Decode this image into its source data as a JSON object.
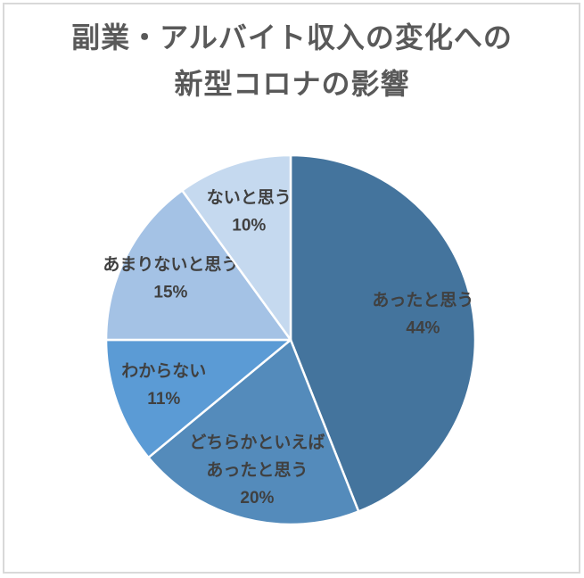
{
  "chart_data": {
    "type": "pie",
    "title": "副業・アルバイト収入の変化への新型コロナの影響",
    "title_lines": [
      "副業・アルバイト収入の変化への",
      "新型コロナの影響"
    ],
    "start_angle_deg": 0,
    "direction": "clockwise",
    "labels_position": "inside",
    "legend_position": "none",
    "slices": [
      {
        "label": "あったと思う",
        "label_lines": [
          "あったと思う"
        ],
        "value_pct": 44,
        "pct_label": "44%",
        "color": "#44749D"
      },
      {
        "label": "どちらかといえばあったと思う",
        "label_lines": [
          "どちらかといえば",
          "あったと思う"
        ],
        "value_pct": 20,
        "pct_label": "20%",
        "color": "#548BBB"
      },
      {
        "label": "わからない",
        "label_lines": [
          "わからない"
        ],
        "value_pct": 11,
        "pct_label": "11%",
        "color": "#5B9BD5"
      },
      {
        "label": "あまりないと思う",
        "label_lines": [
          "あまりないと思う"
        ],
        "value_pct": 15,
        "pct_label": "15%",
        "color": "#A4C2E5"
      },
      {
        "label": "ないと思う",
        "label_lines": [
          "ないと思う"
        ],
        "value_pct": 10,
        "pct_label": "10%",
        "color": "#C5D9EF"
      }
    ],
    "colors": {
      "slice_border": "#FFFFFF",
      "label_text": "#404040",
      "title_text": "#595959",
      "frame_border": "#D9D9D9",
      "background": "#FFFFFF"
    }
  }
}
